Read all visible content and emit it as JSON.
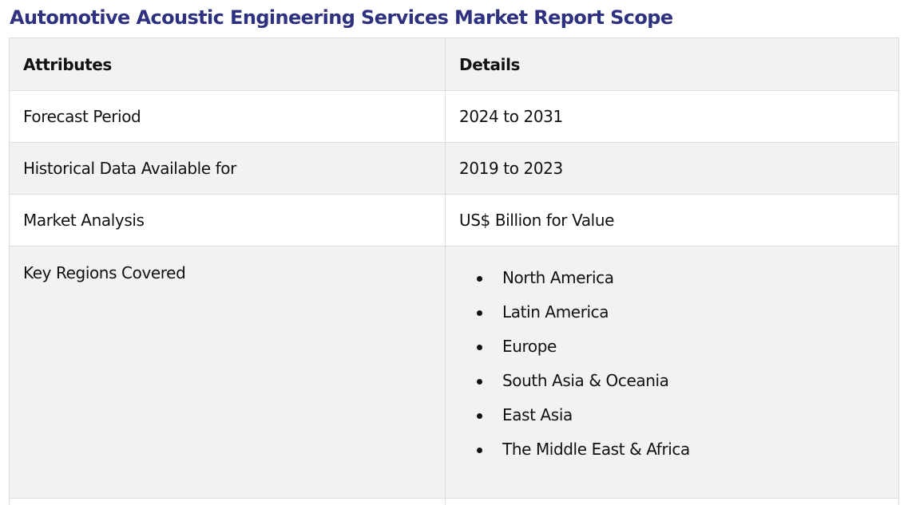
{
  "title": "Automotive Acoustic Engineering Services Market Report Scope",
  "table": {
    "headers": {
      "attributes": "Attributes",
      "details": "Details"
    },
    "rows": [
      {
        "attribute": "Forecast Period",
        "detail": "2024 to 2031"
      },
      {
        "attribute": "Historical Data Available for",
        "detail": "2019 to 2023"
      },
      {
        "attribute": "Market Analysis",
        "detail": "US$ Billion for Value"
      }
    ],
    "regions": {
      "attribute": "Key Regions Covered",
      "items": [
        "North America",
        "Latin America",
        "Europe",
        "South Asia & Oceania",
        "East Asia",
        "The Middle East & Africa"
      ]
    }
  },
  "colors": {
    "title": "#2e3180",
    "row_alt": "#f2f2f2",
    "border": "#dddddd"
  }
}
